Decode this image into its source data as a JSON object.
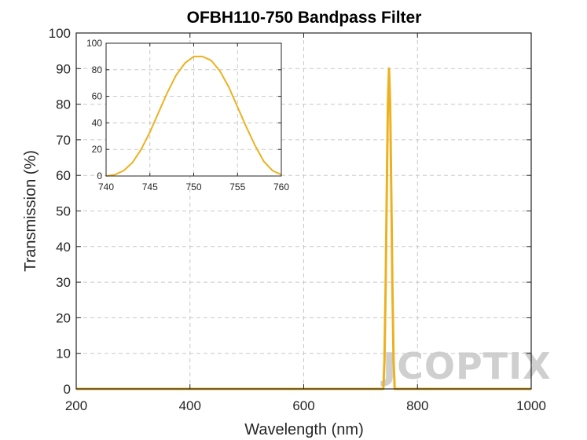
{
  "chart_data": [
    {
      "type": "line",
      "title": "OFBH110-750 Bandpass Filter",
      "xlabel": "Wavelength (nm)",
      "ylabel": "Transmission (%)",
      "xlim": [
        200,
        1000
      ],
      "ylim": [
        0,
        100
      ],
      "xticks": [
        200,
        400,
        600,
        800,
        1000
      ],
      "yticks": [
        0,
        10,
        20,
        30,
        40,
        50,
        60,
        70,
        80,
        90,
        100
      ],
      "grid": "dashed horizontal and vertical",
      "series": [
        {
          "color": "#EDB120",
          "x": [
            200,
            300,
            400,
            500,
            600,
            700,
            738,
            740,
            742,
            744,
            746,
            748,
            750,
            752,
            754,
            756,
            758,
            760,
            762,
            800,
            900,
            1000
          ],
          "y": [
            0,
            0,
            0,
            0,
            0,
            0,
            0,
            0,
            8,
            28,
            55,
            80,
            90,
            80,
            55,
            28,
            8,
            0,
            0,
            0,
            0,
            0
          ]
        }
      ]
    },
    {
      "type": "line",
      "title": "",
      "xlabel": "",
      "ylabel": "",
      "xlim": [
        740,
        760
      ],
      "ylim": [
        0,
        100
      ],
      "xticks": [
        740,
        745,
        750,
        755,
        760
      ],
      "yticks": [
        0,
        20,
        40,
        60,
        80,
        100
      ],
      "grid": "dashed horizontal and vertical",
      "series": [
        {
          "color": "#EDB120",
          "x": [
            740,
            741,
            742,
            743,
            744,
            745,
            746,
            747,
            748,
            749,
            750,
            751,
            752,
            753,
            754,
            755,
            756,
            757,
            758,
            759,
            760
          ],
          "y": [
            0,
            1,
            4,
            10,
            20,
            33,
            48,
            63,
            76,
            85,
            90,
            90,
            87,
            79,
            67,
            52,
            37,
            23,
            11,
            4,
            1
          ]
        }
      ]
    }
  ],
  "watermark": "JCOPTIX"
}
